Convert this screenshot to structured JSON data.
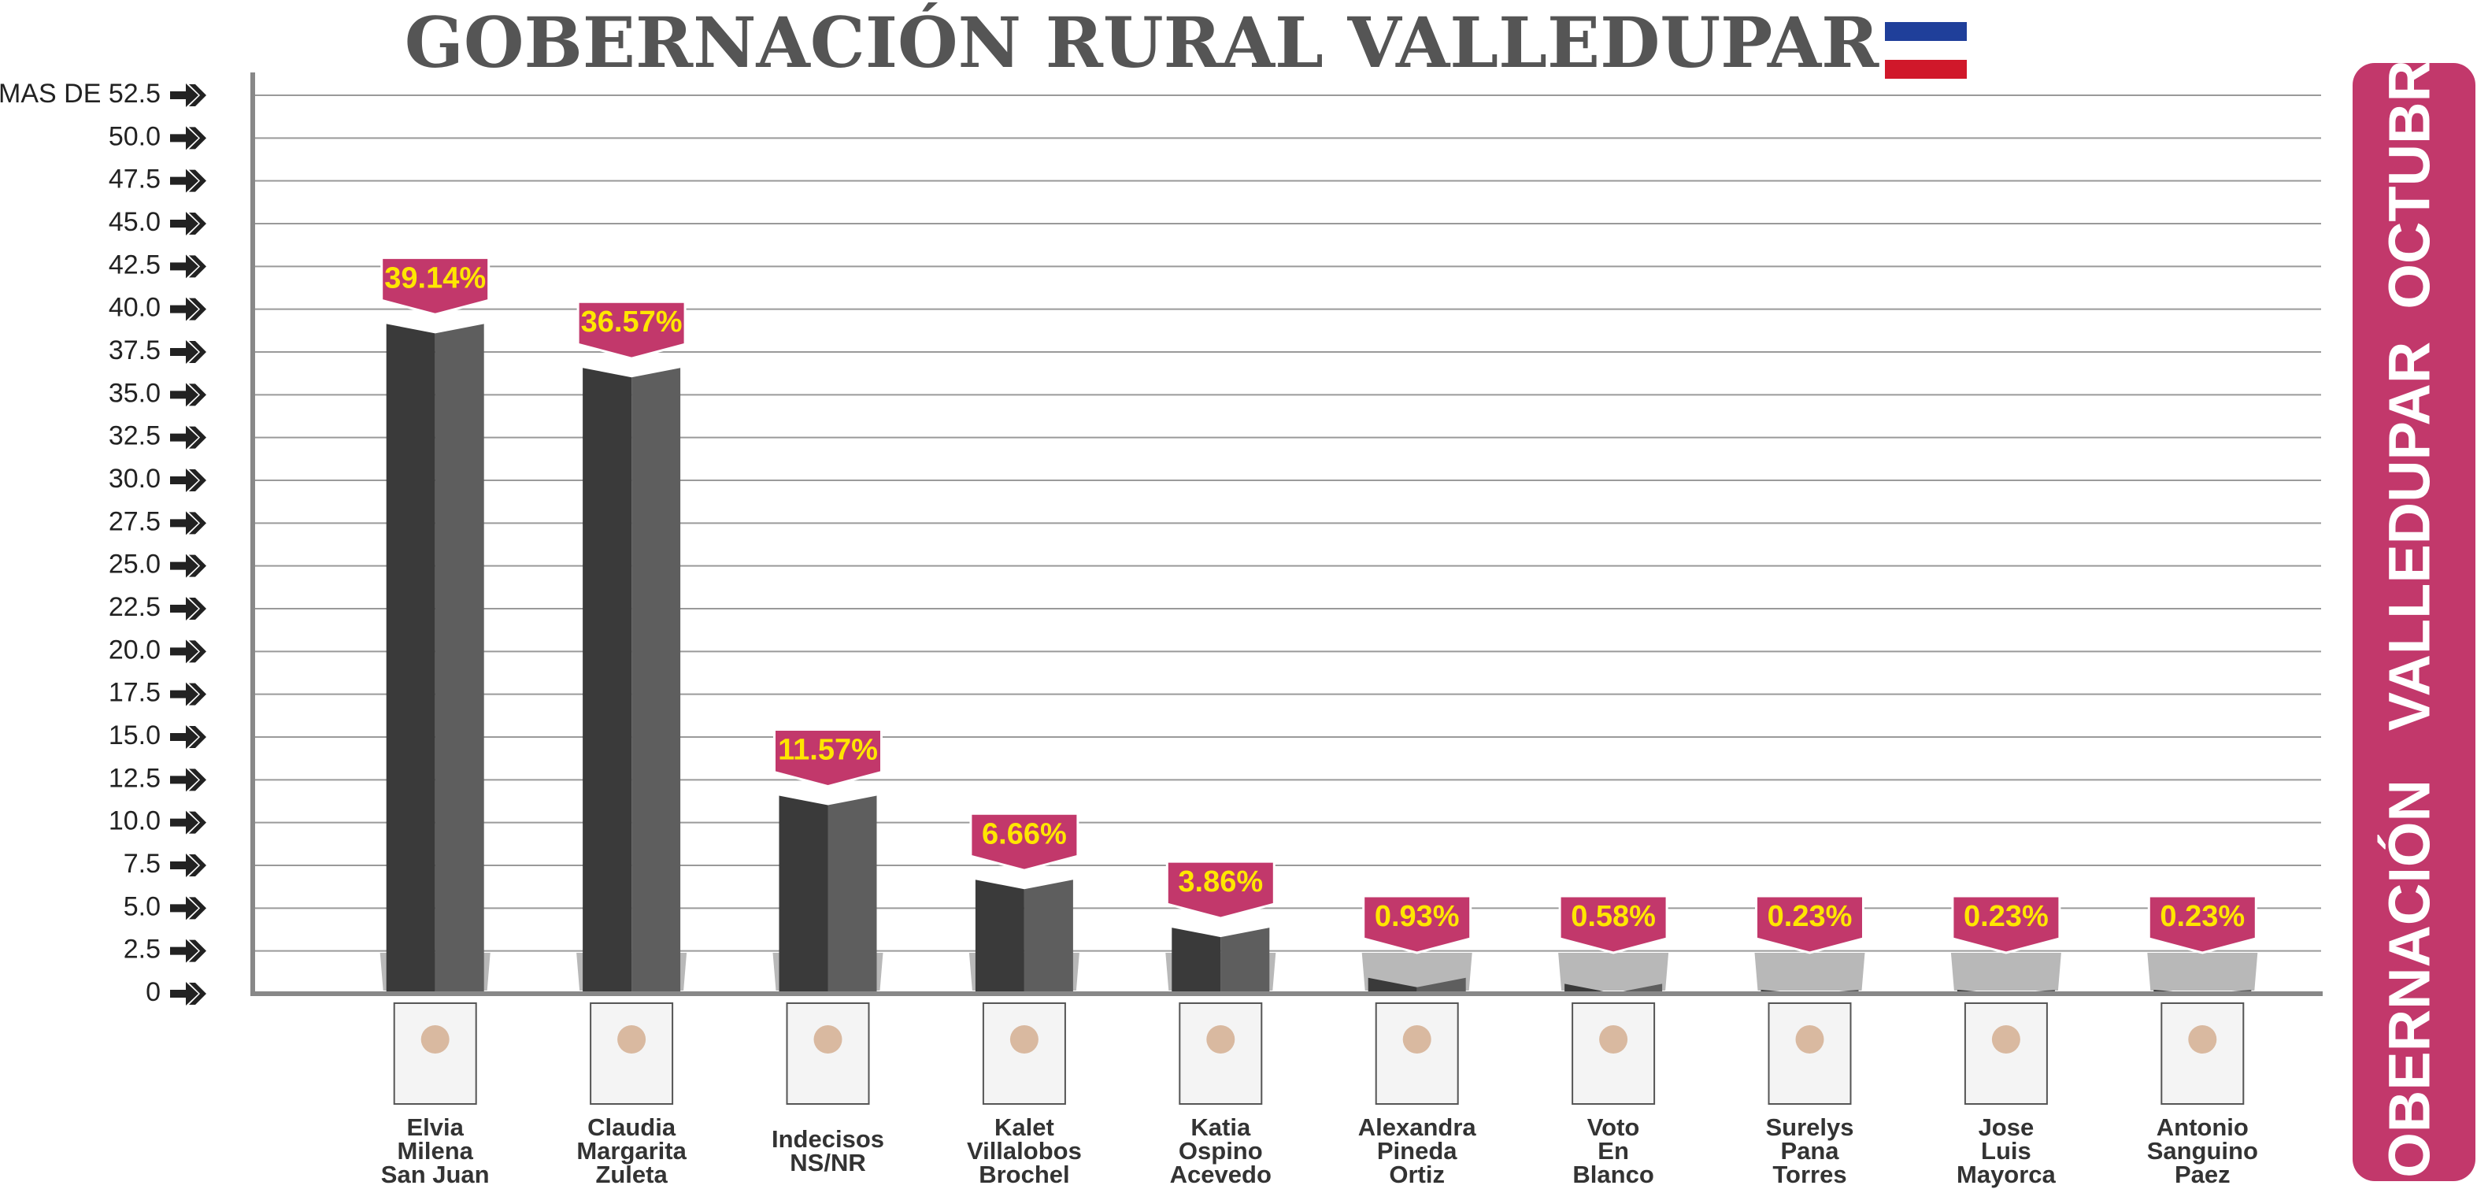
{
  "chart_data": {
    "type": "bar",
    "title": "GOBERNACIÓN RURAL VALLEDUPAR",
    "side_title": "GOBERNACIÓN   VALLEDUPAR  OCTUBRE",
    "categories": [
      [
        "Elvia",
        "Milena",
        "San Juan"
      ],
      [
        "Claudia",
        "Margarita",
        "Zuleta"
      ],
      [
        "Indecisos",
        "NS/NR"
      ],
      [
        "Kalet",
        "Villalobos",
        "Brochel"
      ],
      [
        "Katia",
        "Ospino",
        "Acevedo"
      ],
      [
        "Alexandra",
        "Pineda",
        "Ortiz"
      ],
      [
        "Voto",
        "En",
        "Blanco"
      ],
      [
        "Surelys",
        "Pana",
        "Torres"
      ],
      [
        "Jose",
        "Luis",
        "Mayorca"
      ],
      [
        "Antonio",
        "Sanguino",
        "Paez"
      ]
    ],
    "values": [
      39.14,
      36.57,
      11.57,
      6.66,
      3.86,
      0.93,
      0.58,
      0.23,
      0.23,
      0.23
    ],
    "value_labels": [
      "39.14%",
      "36.57%",
      "11.57%",
      "6.66%",
      "3.86%",
      "0.93%",
      "0.58%",
      "0.23%",
      "0.23%",
      "0.23%"
    ],
    "color": "#3a3a3a",
    "label_color": "#c2386b",
    "ylim": [
      0,
      52.5
    ],
    "yticks": [
      0,
      2.5,
      {
        "value": 5,
        "label": "5.0"
      },
      7.5,
      {
        "value": 10,
        "label": "10.0"
      },
      12.5,
      {
        "value": 15,
        "label": "15.0"
      },
      17.5,
      {
        "value": 20,
        "label": "20.0"
      },
      22.5,
      {
        "value": 25,
        "label": "25.0"
      },
      27.5,
      {
        "value": 30,
        "label": "30.0"
      },
      32.5,
      {
        "value": 35,
        "label": "35.0"
      },
      37.5,
      {
        "value": 40,
        "label": "40.0"
      },
      42.5,
      {
        "value": 45,
        "label": "45.0"
      },
      47.5,
      {
        "value": 50,
        "label": "50.0"
      },
      {
        "value": 52.5,
        "label": "MAS DE 52.5"
      }
    ],
    "grid": true
  }
}
